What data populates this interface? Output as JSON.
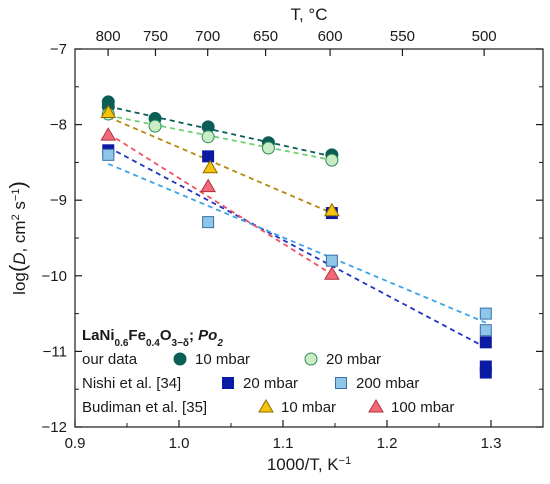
{
  "chart_data": {
    "type": "scatter",
    "title": "",
    "xlabel": "1000/T, K⁻¹",
    "ylabel": "log(D, cm² s⁻¹)",
    "top_xlabel": "T, °C",
    "xlim": [
      0.9,
      1.35
    ],
    "ylim": [
      -12,
      -7
    ],
    "x_ticks": [
      0.9,
      1.0,
      1.1,
      1.2,
      1.3
    ],
    "x_tick_labels": [
      "0.9",
      "1.0",
      "1.1",
      "1.2",
      "1.3"
    ],
    "y_ticks": [
      -12,
      -11,
      -10,
      -9,
      -8,
      -7
    ],
    "y_tick_labels": [
      "−12",
      "−11",
      "−10",
      "−9",
      "−8",
      "−7"
    ],
    "top_ticks_celsius": [
      800,
      750,
      700,
      650,
      600,
      550,
      500
    ],
    "top_tick_labels": [
      "800",
      "750",
      "700",
      "650",
      "600",
      "550",
      "500"
    ],
    "grid": false,
    "legend_placement": "bottom-left",
    "legend": {
      "title": "LaNi0.6Fe0.4O3−δ; Po2",
      "groups": [
        {
          "label": "our data",
          "entries": [
            "10 mbar",
            "20 mbar"
          ]
        },
        {
          "label": "Nishi et al. [34]",
          "entries": [
            "20 mbar",
            "200 mbar"
          ]
        },
        {
          "label": "Budiman et al. [35]",
          "entries": [
            "10 mbar",
            "100 mbar"
          ]
        }
      ]
    },
    "series": [
      {
        "name": "10 mbar",
        "group": "our data",
        "marker": "circle",
        "color": "#0b5e55",
        "fill": "#0b5e55",
        "line_color": "#0b5e55",
        "points": [
          [
            0.932,
            -7.7
          ],
          [
            0.932,
            -7.76
          ],
          [
            0.977,
            -7.92
          ],
          [
            1.028,
            -8.03
          ],
          [
            1.086,
            -8.24
          ],
          [
            1.147,
            -8.4
          ]
        ],
        "fit": [
          [
            0.932,
            -7.76
          ],
          [
            1.147,
            -8.42
          ]
        ]
      },
      {
        "name": "20 mbar",
        "group": "our data",
        "marker": "circle",
        "color": "#2e8b57",
        "fill": "#c8ecc4",
        "line_color": "#6fcf72",
        "points": [
          [
            0.932,
            -7.86
          ],
          [
            0.977,
            -8.02
          ],
          [
            1.028,
            -8.16
          ],
          [
            1.086,
            -8.31
          ],
          [
            1.147,
            -8.47
          ]
        ],
        "fit": [
          [
            0.932,
            -7.88
          ],
          [
            1.147,
            -8.47
          ]
        ]
      },
      {
        "name": "20 mbar",
        "group": "Nishi et al. [34]",
        "marker": "square",
        "color": "#0a1aa3",
        "fill": "#0a1aa3",
        "line_color": "#1f35c4",
        "points": [
          [
            0.932,
            -8.34
          ],
          [
            1.028,
            -8.42
          ],
          [
            1.147,
            -9.17
          ],
          [
            1.295,
            -10.88
          ],
          [
            1.295,
            -11.2
          ],
          [
            1.295,
            -11.28
          ]
        ],
        "fit": [
          [
            0.932,
            -8.3
          ],
          [
            1.295,
            -10.95
          ]
        ]
      },
      {
        "name": "200 mbar",
        "group": "Nishi et al. [34]",
        "marker": "square",
        "color": "#3a6fa8",
        "fill": "#8ec6ea",
        "line_color": "#3aa3e8",
        "points": [
          [
            0.932,
            -8.4
          ],
          [
            1.028,
            -9.29
          ],
          [
            1.147,
            -9.8
          ],
          [
            1.295,
            -10.5
          ],
          [
            1.295,
            -10.72
          ]
        ],
        "fit": [
          [
            0.932,
            -8.52
          ],
          [
            1.295,
            -10.62
          ]
        ]
      },
      {
        "name": "10 mbar",
        "group": "Budiman et al. [35]",
        "marker": "triangle",
        "color": "#8a6a00",
        "fill": "#f5c40a",
        "line_color": "#b8860b",
        "points": [
          [
            0.932,
            -7.84
          ],
          [
            1.03,
            -8.57
          ],
          [
            1.147,
            -9.14
          ]
        ],
        "fit": [
          [
            0.932,
            -7.9
          ],
          [
            1.147,
            -9.17
          ]
        ]
      },
      {
        "name": "100 mbar",
        "group": "Budiman et al. [35]",
        "marker": "triangle",
        "color": "#b03040",
        "fill": "#f26a7a",
        "line_color": "#f04f62",
        "points": [
          [
            0.932,
            -8.14
          ],
          [
            1.028,
            -8.82
          ],
          [
            1.147,
            -9.98
          ]
        ],
        "fit": [
          [
            0.932,
            -8.12
          ],
          [
            1.147,
            -9.98
          ]
        ]
      }
    ]
  }
}
